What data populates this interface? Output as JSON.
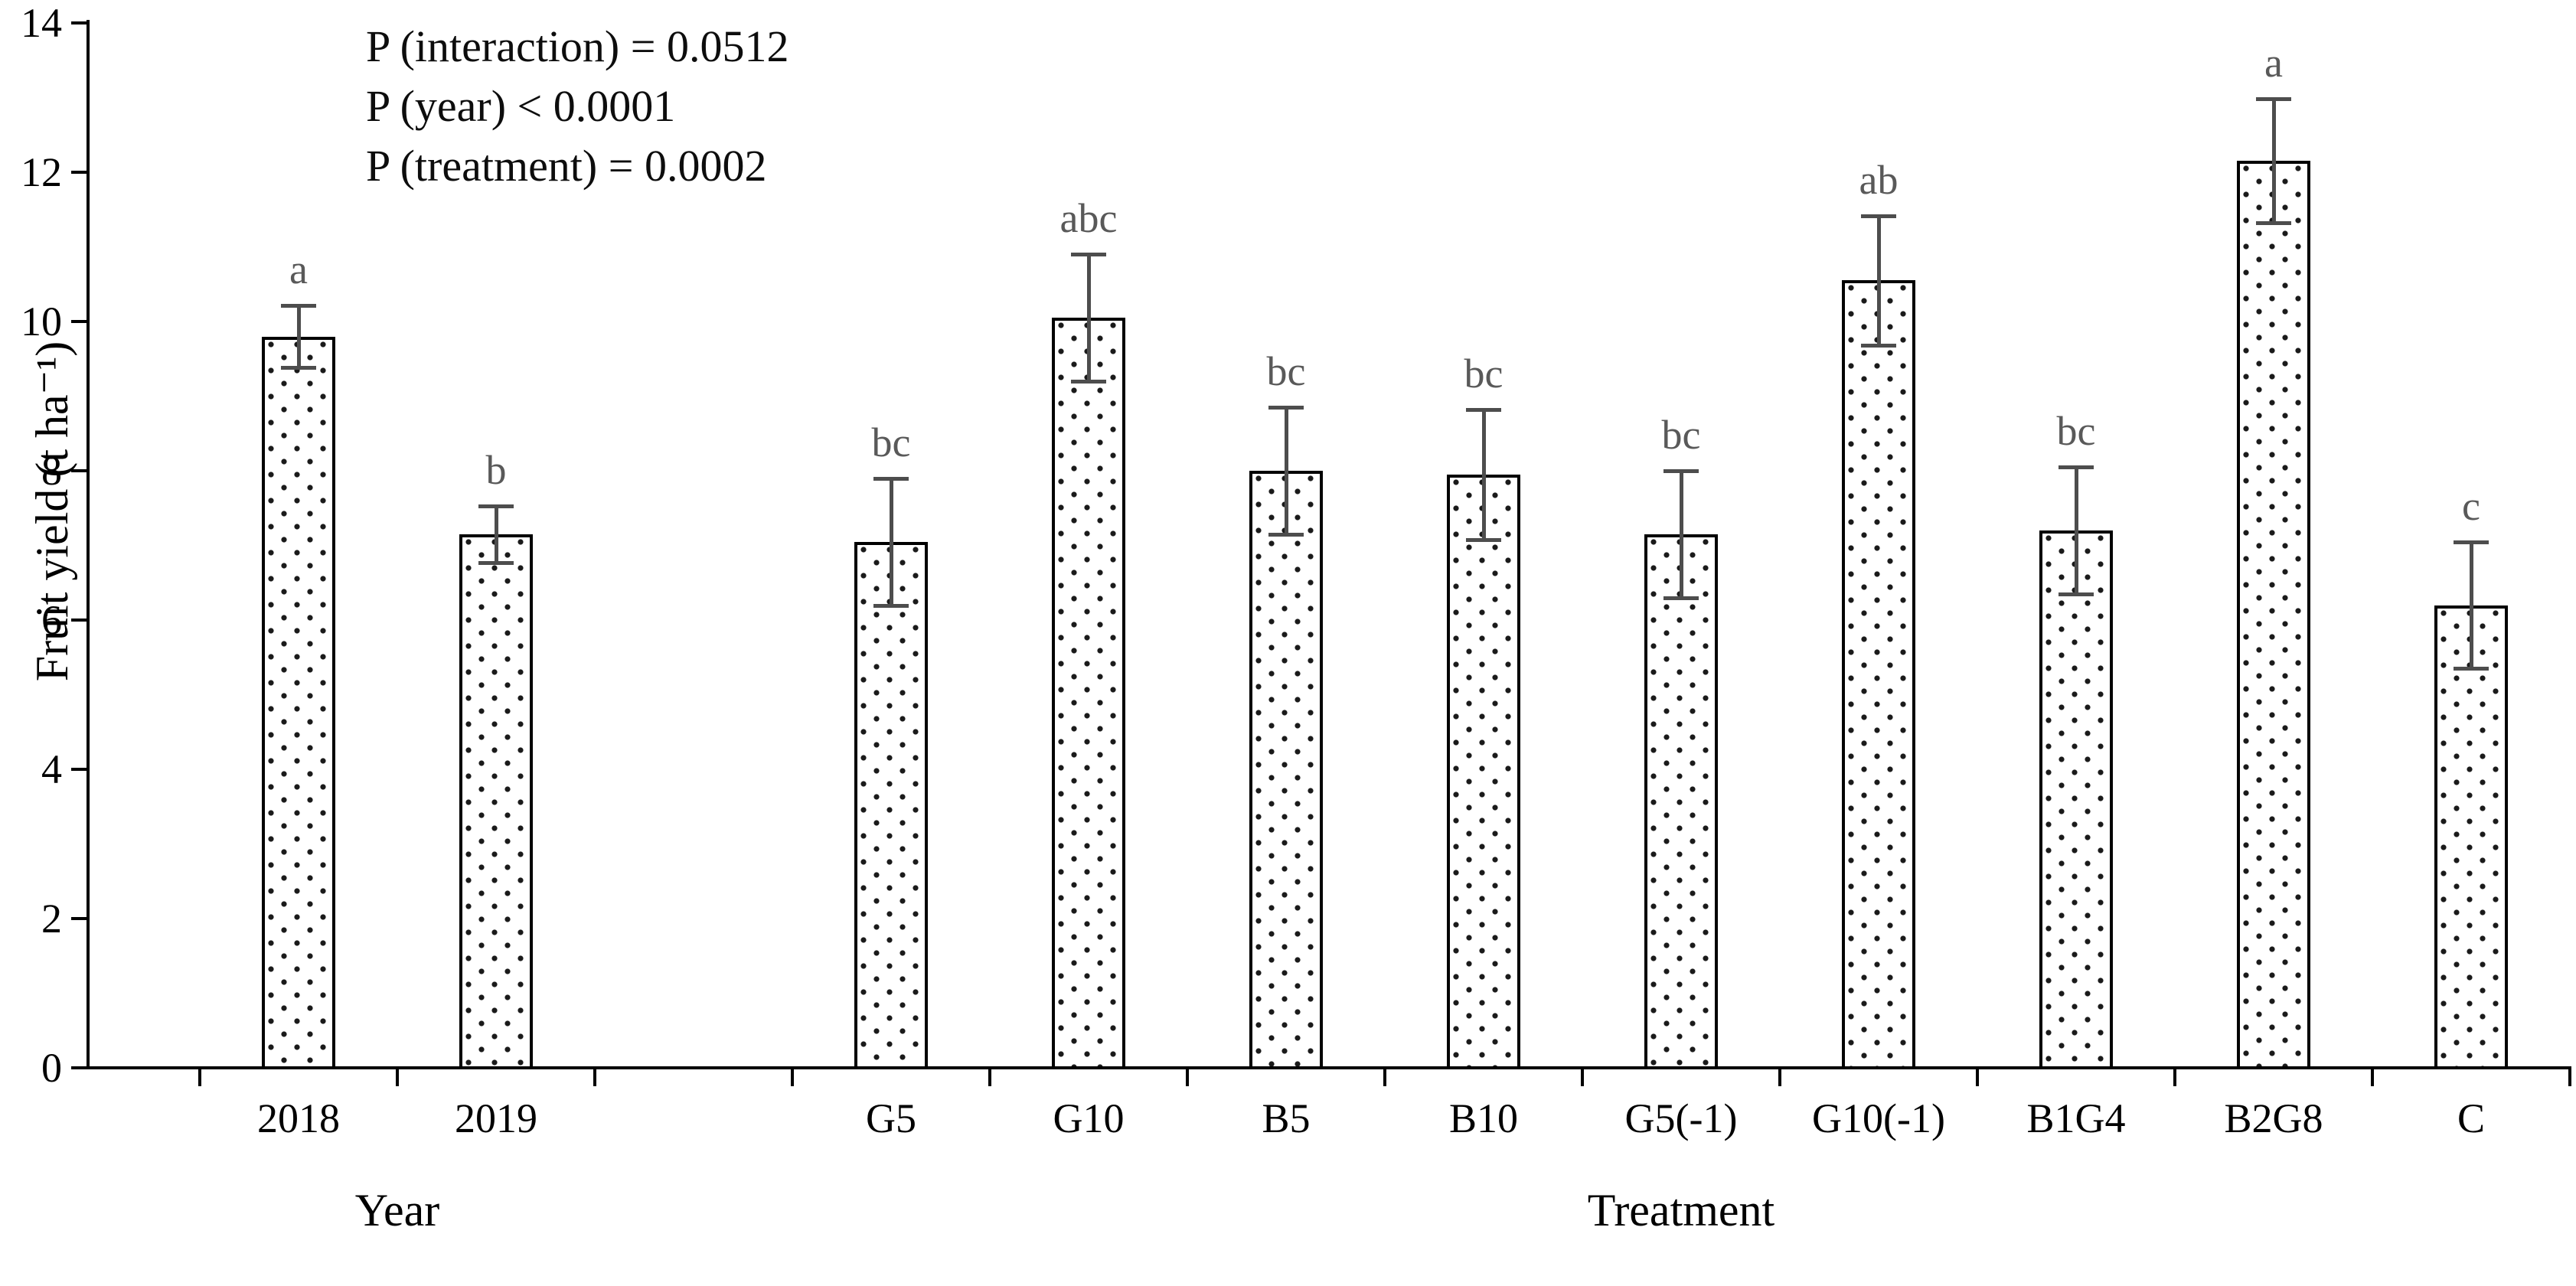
{
  "chart_data": {
    "type": "bar",
    "title": "",
    "xlabel": "",
    "ylabel": "Fruit yield (t ha⁻¹)",
    "ylim": [
      0,
      14
    ],
    "yticks": [
      0,
      2,
      4,
      6,
      8,
      10,
      12,
      14
    ],
    "grid": false,
    "legend": "none",
    "group_labels": {
      "year": "Year",
      "treatment": "Treatment"
    },
    "annotations": [
      "P (interaction) = 0.0512",
      "P (year) < 0.0001",
      "P (treatment) = 0.0002"
    ],
    "n_slots": 12,
    "bars": [
      {
        "label": "2018",
        "value": 9.8,
        "err": 0.42,
        "letter": "a",
        "slot": 0,
        "group": "Year"
      },
      {
        "label": "2019",
        "value": 7.15,
        "err": 0.38,
        "letter": "b",
        "slot": 1,
        "group": "Year"
      },
      {
        "label": "G5",
        "value": 7.05,
        "err": 0.85,
        "letter": "bc",
        "slot": 3,
        "group": "Treatment"
      },
      {
        "label": "G10",
        "value": 10.05,
        "err": 0.85,
        "letter": "abc",
        "slot": 4,
        "group": "Treatment"
      },
      {
        "label": "B5",
        "value": 8.0,
        "err": 0.85,
        "letter": "bc",
        "slot": 5,
        "group": "Treatment"
      },
      {
        "label": "B10",
        "value": 7.95,
        "err": 0.87,
        "letter": "bc",
        "slot": 6,
        "group": "Treatment"
      },
      {
        "label": "G5(-1)",
        "value": 7.15,
        "err": 0.85,
        "letter": "bc",
        "slot": 7,
        "group": "Treatment"
      },
      {
        "label": "G10(-1)",
        "value": 10.55,
        "err": 0.87,
        "letter": "ab",
        "slot": 8,
        "group": "Treatment"
      },
      {
        "label": "B1G4",
        "value": 7.2,
        "err": 0.85,
        "letter": "bc",
        "slot": 9,
        "group": "Treatment"
      },
      {
        "label": "B2G8",
        "value": 12.15,
        "err": 0.83,
        "letter": "a",
        "slot": 10,
        "group": "Treatment"
      },
      {
        "label": "C",
        "value": 6.2,
        "err": 0.85,
        "letter": "c",
        "slot": 11,
        "group": "Treatment"
      }
    ]
  },
  "colors": {
    "bar_fill": "#ffffff",
    "bar_border": "#000000",
    "bar_dot": "#1a1a1a",
    "error_bar": "#4d4d4d",
    "letter": "#595959",
    "axis": "#000000",
    "background": "#ffffff"
  }
}
